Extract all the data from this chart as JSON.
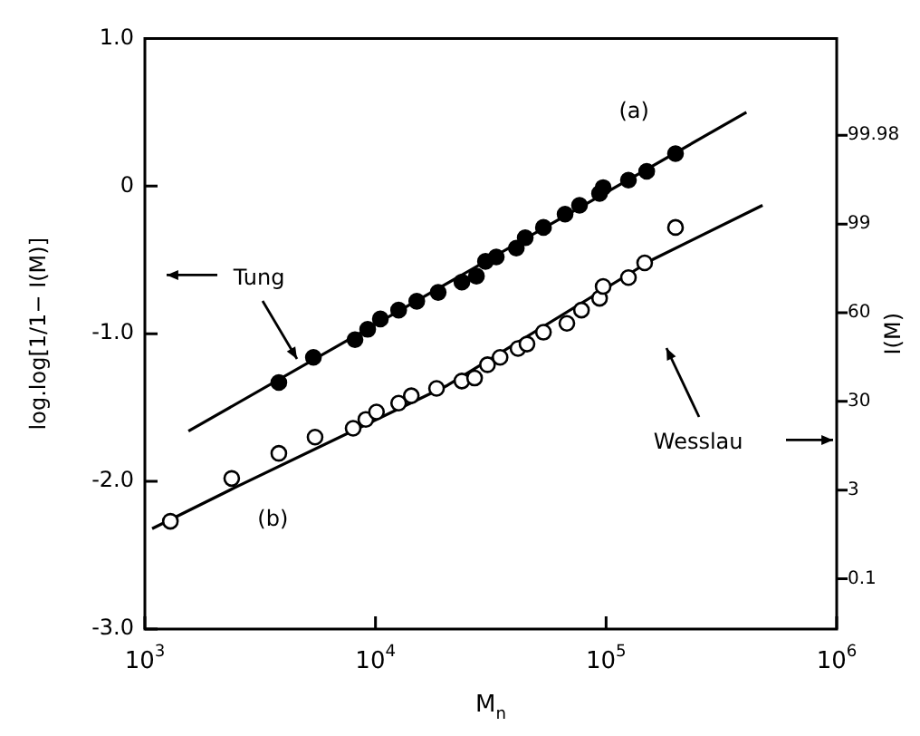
{
  "chart_data": {
    "type": "scatter",
    "xlabel": "M$_{n}$",
    "ylabel": "log.log[1/1− I(M)]",
    "y2label": "I(M)",
    "log": "x",
    "grid": false,
    "legend": false,
    "xlim": [
      1000,
      1000000
    ],
    "xticks": [
      {
        "value": 1000,
        "label": "10$^{3}$"
      },
      {
        "value": 10000,
        "label": "10$^{4}$"
      },
      {
        "value": 100000,
        "label": "10$^{5}$"
      },
      {
        "value": 1000000,
        "label": "10$^{6}$"
      }
    ],
    "ylim": [
      -3,
      1
    ],
    "yticks": [
      {
        "value": -3,
        "label": "-3.0"
      },
      {
        "value": -2,
        "label": "-2.0"
      },
      {
        "value": -1,
        "label": "-1.0"
      },
      0,
      {
        "value": 1,
        "label": "1.0"
      }
    ],
    "y2_categories": [
      "99.98",
      "99",
      "60",
      "30",
      "3",
      "0.1"
    ],
    "series": [
      {
        "type": "scatter",
        "marker": "circle",
        "color": "#000000",
        "x": [
          3810,
          5380,
          8150,
          9250,
          10500,
          12600,
          15100,
          18700,
          23700,
          27400,
          30000,
          33400,
          40800,
          44600,
          53500,
          66400,
          76700,
          93700,
          97100,
          125000,
          150000,
          200000
        ],
        "values": [
          -1.33,
          -1.16,
          -1.04,
          -0.97,
          -0.9,
          -0.84,
          -0.78,
          -0.72,
          -0.65,
          -0.61,
          -0.51,
          -0.48,
          -0.42,
          -0.35,
          -0.28,
          -0.19,
          -0.13,
          -0.05,
          -0.01,
          0.04,
          0.1,
          0.22
        ]
      },
      {
        "type": "scatter",
        "marker": "circle",
        "color": "#000000",
        "x": [
          1290,
          2380,
          3810,
          5470,
          8000,
          9080,
          10100,
          12600,
          14300,
          18400,
          23700,
          26900,
          30600,
          34700,
          41500,
          45400,
          53500,
          67600,
          78200,
          93700,
          97100,
          125000,
          147000,
          200000
        ],
        "values": [
          -2.27,
          -1.98,
          -1.81,
          -1.7,
          -1.64,
          -1.58,
          -1.53,
          -1.47,
          -1.42,
          -1.37,
          -1.32,
          -1.3,
          -1.21,
          -1.16,
          -1.1,
          -1.07,
          -0.99,
          -0.93,
          -0.84,
          -0.76,
          -0.68,
          -0.62,
          -0.52,
          -0.28
        ]
      },
      {
        "type": "line",
        "marker": "none",
        "line_style": "solid",
        "color": "#000000",
        "x": [
          1545,
          406000
        ],
        "values": [
          -1.66,
          0.5
        ]
      },
      {
        "type": "line",
        "marker": "none",
        "line_style": "solid",
        "color": "#000000",
        "x": [
          1075,
          2470,
          20500,
          158000,
          477000
        ],
        "values": [
          -2.32,
          -2.04,
          -1.35,
          -0.5,
          -0.13
        ]
      }
    ],
    "annotations": [
      "(a)",
      "(b)",
      "Tung",
      "Wesslau"
    ]
  }
}
